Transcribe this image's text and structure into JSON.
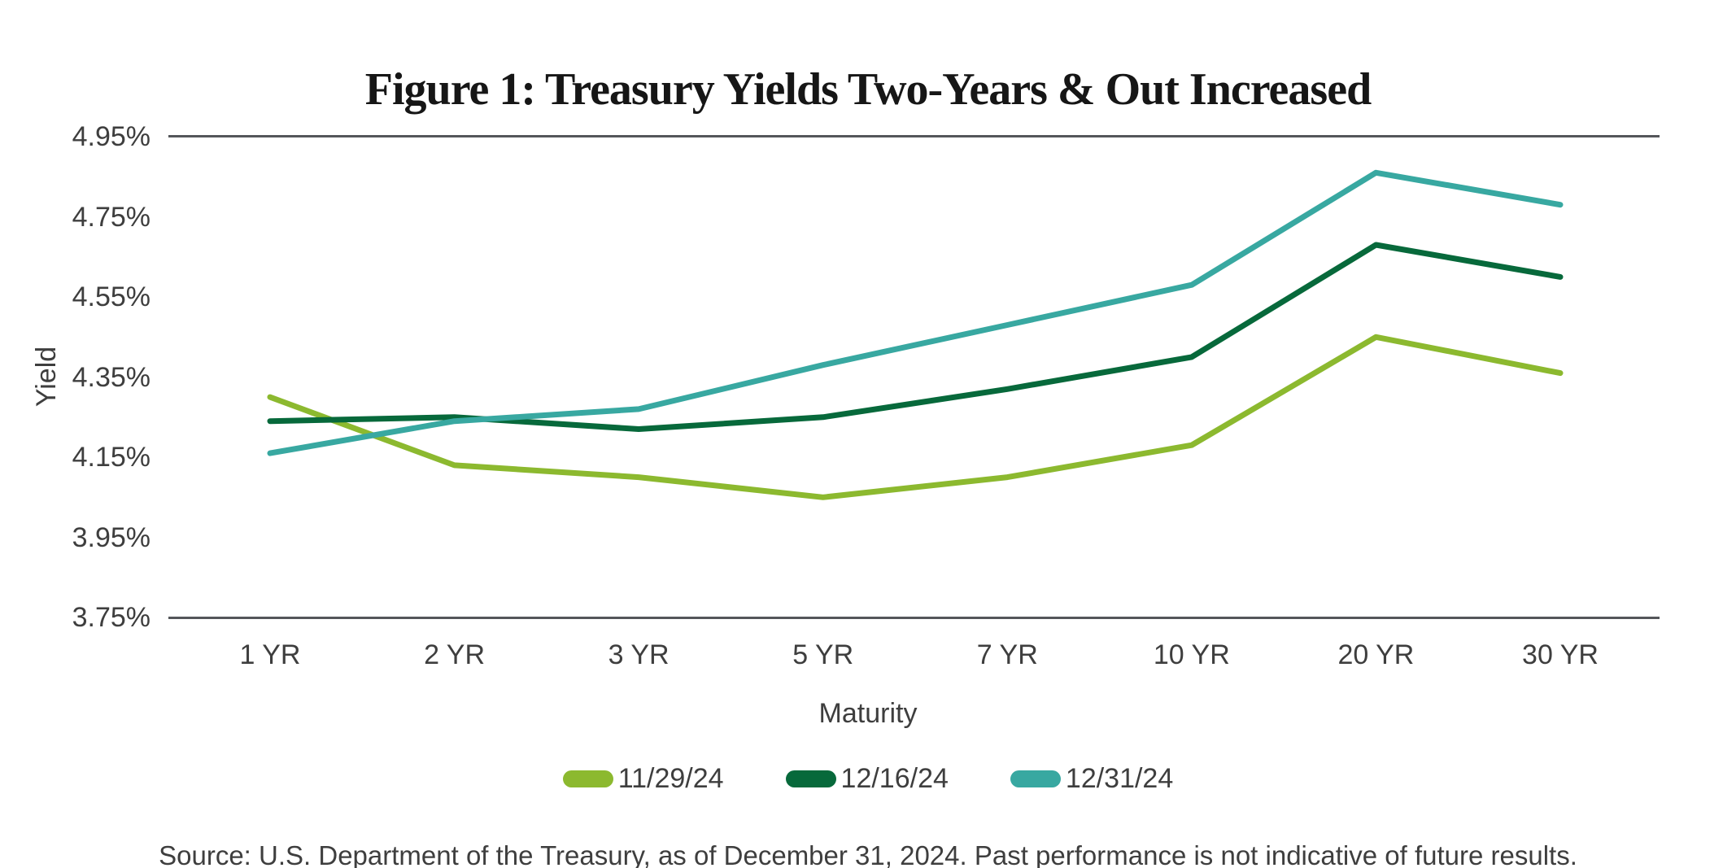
{
  "title": "Figure 1: Treasury Yields Two-Years & Out Increased",
  "source_note": "Source: U.S. Department of the Treasury, as of December 31, 2024. Past performance is not indicative of future results.",
  "chart_data": {
    "type": "line",
    "title": "Figure 1: Treasury Yields Two-Years & Out Increased",
    "xlabel": "Maturity",
    "ylabel": "Yield",
    "categories": [
      "1 YR",
      "2 YR",
      "3 YR",
      "5 YR",
      "7 YR",
      "10 YR",
      "20 YR",
      "30 YR"
    ],
    "series": [
      {
        "name": "11/29/24",
        "color": "#8CB92F",
        "values": [
          4.3,
          4.13,
          4.1,
          4.05,
          4.1,
          4.18,
          4.45,
          4.36
        ]
      },
      {
        "name": "12/16/24",
        "color": "#07693B",
        "values": [
          4.24,
          4.25,
          4.22,
          4.25,
          4.32,
          4.4,
          4.68,
          4.6
        ]
      },
      {
        "name": "12/31/24",
        "color": "#38A8A1",
        "values": [
          4.16,
          4.24,
          4.27,
          4.38,
          4.48,
          4.58,
          4.86,
          4.78
        ]
      }
    ],
    "ylim": [
      3.75,
      4.95
    ],
    "ytick_labels": [
      "4.95%",
      "4.75%",
      "4.55%",
      "4.35%",
      "4.15%",
      "3.95%",
      "3.75%"
    ],
    "ytick_step": 0.2,
    "grid": "horizontal rules at top (4.95%) and bottom (3.75%) only",
    "legend_position": "bottom-center",
    "axis_line_color": "#54565A",
    "label_color": "#3E3E3E"
  }
}
